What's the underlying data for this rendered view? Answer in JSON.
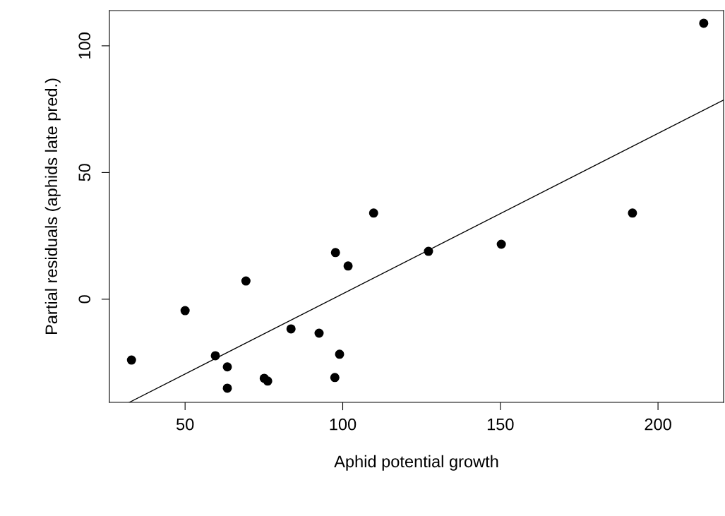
{
  "chart_data": {
    "type": "scatter",
    "xlabel": "Aphid potential growth",
    "ylabel": "Partial residuals (aphids late pred.)",
    "xlim": [
      26.0,
      220.8
    ],
    "ylim": [
      -40.7,
      113.9
    ],
    "xticks": [
      50,
      100,
      150,
      200
    ],
    "yticks": [
      0,
      50,
      100
    ],
    "grid": false,
    "series": [
      {
        "marker": "circle",
        "color": "#000000",
        "x": [
          33.0,
          50.0,
          59.6,
          63.4,
          63.4,
          69.3,
          75.1,
          76.2,
          83.6,
          92.5,
          97.5,
          97.7,
          99.0,
          101.7,
          109.8,
          127.2,
          150.3,
          191.9,
          214.5
        ],
        "values": [
          -24.0,
          -4.5,
          -22.3,
          -26.7,
          -35.1,
          7.2,
          -31.2,
          -32.3,
          -11.7,
          -13.4,
          -30.9,
          18.4,
          -21.7,
          13.1,
          34.0,
          18.9,
          21.7,
          34.0,
          108.9
        ]
      },
      {
        "type": "line",
        "color": "#000000",
        "x": [
          32.3,
          220.8
        ],
        "values": [
          -40.7,
          78.6
        ]
      }
    ]
  }
}
